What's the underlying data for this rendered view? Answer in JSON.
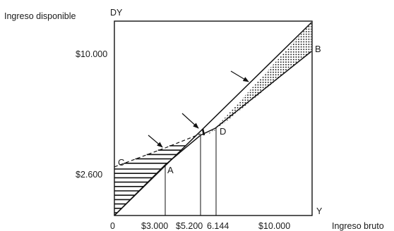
{
  "axes": {
    "y_title": "Ingreso disponible",
    "y_symbol": "DY",
    "x_title": "Ingreso bruto",
    "x_symbol": "Y",
    "origin": "0"
  },
  "y_ticks": [
    "$10.000",
    "$2.600"
  ],
  "x_ticks": [
    "$3.000",
    "$5.200",
    "6.144",
    "$10.000"
  ],
  "points": {
    "A": "A",
    "B": "B",
    "C": "C",
    "D": "D"
  },
  "chart_data": {
    "type": "line",
    "series": [
      {
        "x": [
          0,
          12000
        ],
        "y": [
          0,
          12000
        ]
      },
      {
        "x": [
          0,
          3000,
          5200,
          12000
        ],
        "y": [
          2600,
          3000,
          4800,
          12000
        ]
      },
      {
        "x": [
          0,
          3000,
          6144,
          12000
        ],
        "y": [
          0,
          3000,
          5200,
          10600
        ]
      }
    ],
    "xlabel": "Ingreso bruto",
    "ylabel": "Ingreso disponible",
    "grid": false
  }
}
